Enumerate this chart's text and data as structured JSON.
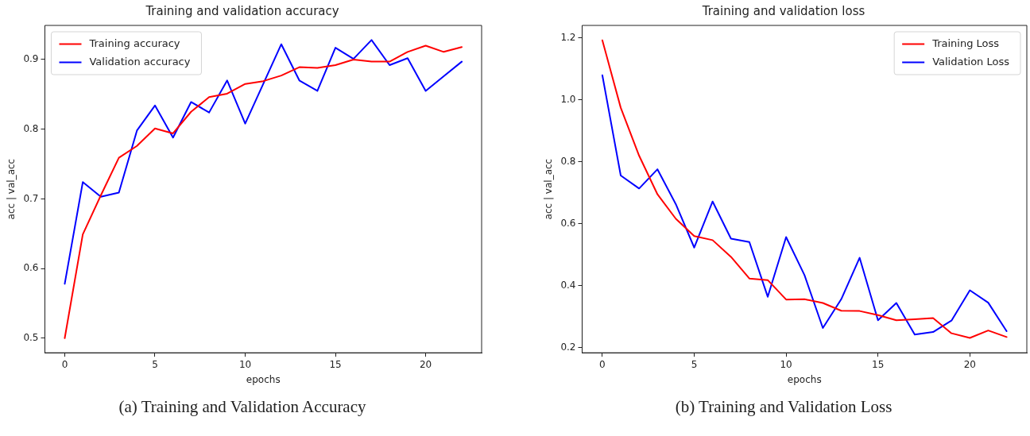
{
  "chart_data": [
    {
      "type": "line",
      "title": "Training and validation accuracy",
      "xlabel": "epochs",
      "ylabel": "acc | val_acc",
      "annotations": [
        "(a) Training and Validation Accuracy"
      ],
      "x": [
        0,
        1,
        2,
        3,
        4,
        5,
        6,
        7,
        8,
        9,
        10,
        11,
        12,
        13,
        14,
        15,
        16,
        17,
        18,
        19,
        20,
        21,
        22
      ],
      "series": [
        {
          "name": "Training accuracy",
          "color": "#ff0000",
          "values": [
            0.5,
            0.649,
            0.705,
            0.759,
            0.776,
            0.801,
            0.794,
            0.825,
            0.846,
            0.851,
            0.865,
            0.869,
            0.877,
            0.889,
            0.888,
            0.892,
            0.9,
            0.897,
            0.897,
            0.911,
            0.92,
            0.911,
            0.918
          ]
        },
        {
          "name": "Validation accuracy",
          "color": "#0000ff",
          "values": [
            0.578,
            0.724,
            0.703,
            0.709,
            0.798,
            0.834,
            0.788,
            0.839,
            0.824,
            0.87,
            0.808,
            0.865,
            0.922,
            0.87,
            0.855,
            0.917,
            0.901,
            0.928,
            0.892,
            0.902,
            0.855,
            0.876,
            0.897
          ]
        }
      ],
      "xlim": [
        -1.1,
        23.1
      ],
      "ylim": [
        0.479,
        0.949
      ],
      "xticks": [
        0,
        5,
        10,
        15,
        20
      ],
      "yticks": [
        0.5,
        0.6,
        0.7,
        0.8,
        0.9
      ],
      "grid": false,
      "legend": "top left",
      "marker": "none",
      "line_style": "solid"
    },
    {
      "type": "line",
      "title": "Training and validation loss",
      "xlabel": "epochs",
      "ylabel": "acc | val_acc",
      "annotations": [
        "(b) Training and Validation Loss"
      ],
      "x": [
        0,
        1,
        2,
        3,
        4,
        5,
        6,
        7,
        8,
        9,
        10,
        11,
        12,
        13,
        14,
        15,
        16,
        17,
        18,
        19,
        20,
        21,
        22
      ],
      "series": [
        {
          "name": "Training Loss",
          "color": "#ff0000",
          "values": [
            1.193,
            0.975,
            0.82,
            0.695,
            0.616,
            0.56,
            0.547,
            0.493,
            0.423,
            0.418,
            0.355,
            0.356,
            0.344,
            0.319,
            0.318,
            0.305,
            0.288,
            0.291,
            0.295,
            0.246,
            0.231,
            0.255,
            0.234
          ]
        },
        {
          "name": "Validation Loss",
          "color": "#0000ff",
          "values": [
            1.08,
            0.756,
            0.714,
            0.776,
            0.663,
            0.523,
            0.672,
            0.552,
            0.541,
            0.364,
            0.557,
            0.434,
            0.263,
            0.356,
            0.49,
            0.288,
            0.344,
            0.242,
            0.25,
            0.287,
            0.385,
            0.345,
            0.253
          ]
        }
      ],
      "xlim": [
        -1.1,
        23.1
      ],
      "ylim": [
        0.183,
        1.241
      ],
      "xticks": [
        0,
        5,
        10,
        15,
        20
      ],
      "yticks": [
        0.2,
        0.4,
        0.6,
        0.8,
        {
          "value": 1,
          "label": "1.0"
        },
        1.2
      ],
      "grid": false,
      "legend": "top right",
      "marker": "none",
      "line_style": "solid"
    }
  ]
}
